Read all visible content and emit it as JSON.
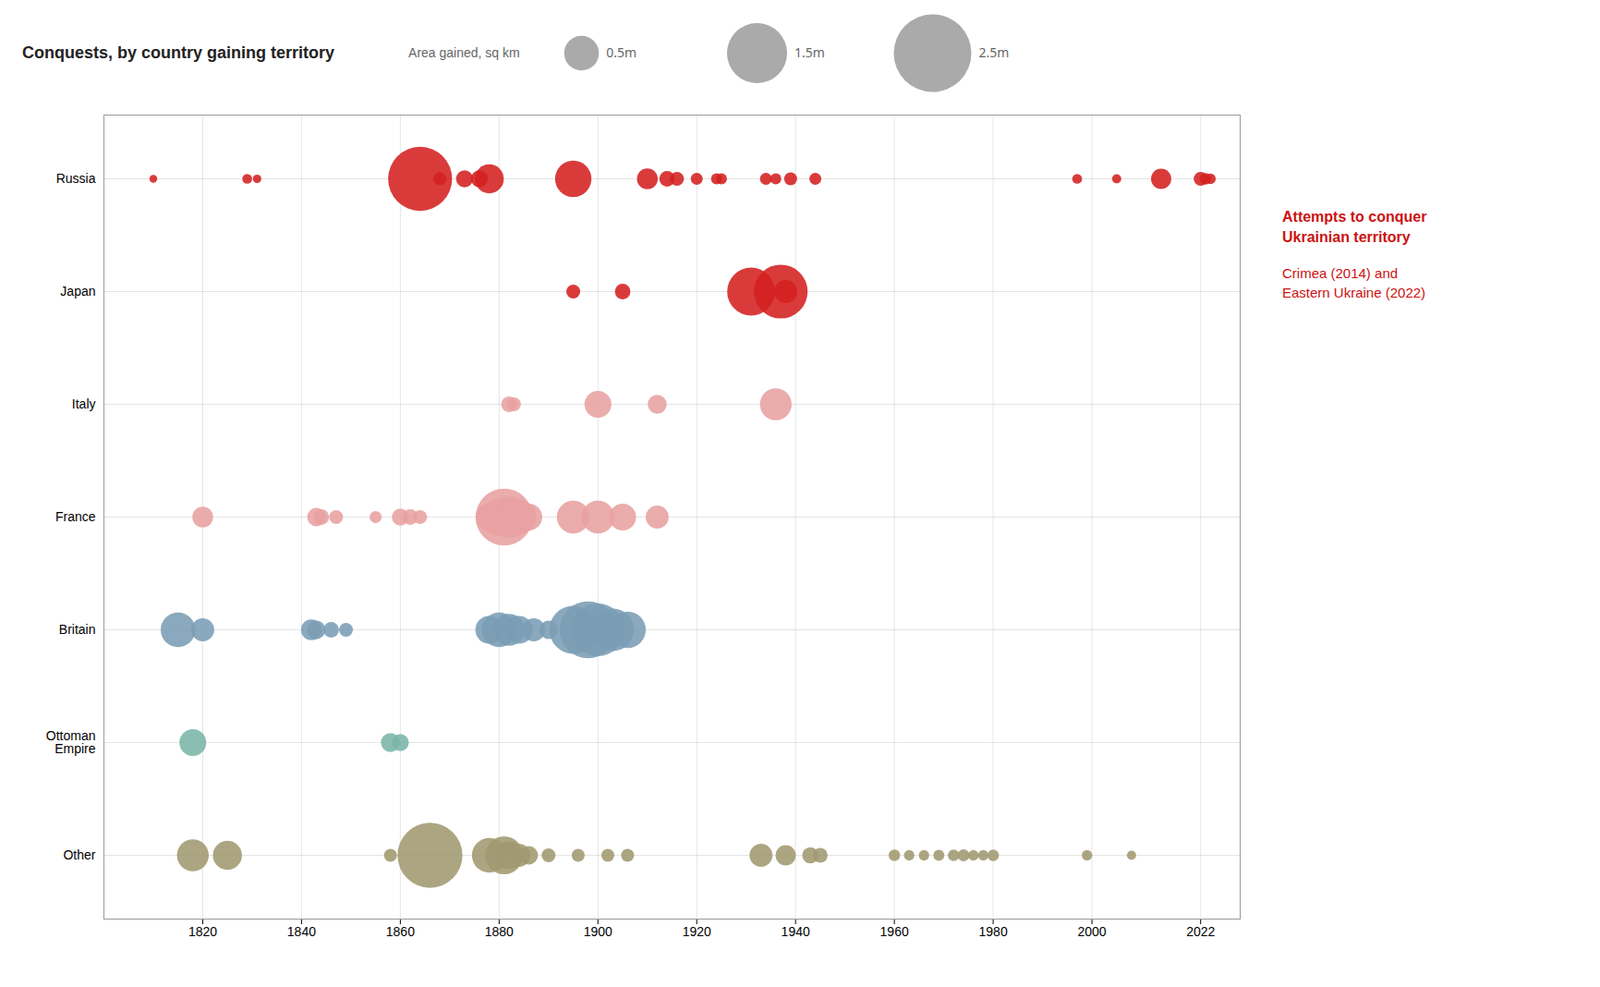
{
  "chart_data": {
    "type": "bubble",
    "title": "Conquests, by country gaining territory",
    "categories": [
      "Russia",
      "Japan",
      "Italy",
      "France",
      "Britain",
      "Ottoman\nEmpire",
      "Other"
    ],
    "xlim": [
      1800,
      2030
    ],
    "xticks": [
      1820,
      1840,
      1860,
      1880,
      1900,
      1920,
      1940,
      1960,
      1980,
      2000,
      2022
    ],
    "grid": true,
    "series": [
      {
        "category": "Russia",
        "color": "#d42020",
        "x": [
          1810,
          1829,
          1831,
          1864,
          1868,
          1873,
          1876,
          1878,
          1895,
          1910,
          1914,
          1916,
          1920,
          1924,
          1925,
          1934,
          1936,
          1939,
          1944,
          1997,
          2005,
          2014,
          2022,
          2023,
          2024
        ],
        "sizes": [
          0.025,
          0.04,
          0.03,
          1.7,
          0.07,
          0.12,
          0.12,
          0.35,
          0.55,
          0.18,
          0.1,
          0.08,
          0.06,
          0.05,
          0.05,
          0.06,
          0.05,
          0.07,
          0.06,
          0.04,
          0.035,
          0.17,
          0.08,
          0.055,
          0.045
        ]
      },
      {
        "category": "Japan",
        "color": "#d42020",
        "x": [
          1895,
          1905,
          1931,
          1937,
          1938
        ],
        "sizes": [
          0.08,
          0.1,
          0.95,
          1.2,
          0.22
        ]
      },
      {
        "category": "Italy",
        "color": "#e8a0a0",
        "x": [
          1882,
          1883,
          1900,
          1912,
          1936
        ],
        "sizes": [
          0.1,
          0.08,
          0.3,
          0.15,
          0.42
        ]
      },
      {
        "category": "France",
        "color": "#e8a0a0",
        "x": [
          1820,
          1843,
          1844,
          1847,
          1855,
          1860,
          1862,
          1864,
          1878,
          1880,
          1881,
          1882,
          1884,
          1886,
          1895,
          1900,
          1905,
          1912
        ],
        "sizes": [
          0.18,
          0.14,
          0.1,
          0.08,
          0.06,
          0.12,
          0.1,
          0.08,
          0.3,
          0.55,
          1.35,
          0.7,
          0.5,
          0.3,
          0.45,
          0.45,
          0.3,
          0.22
        ]
      },
      {
        "category": "Britain",
        "color": "#7a9db5",
        "x": [
          1815,
          1820,
          1842,
          1843,
          1846,
          1849,
          1878,
          1880,
          1882,
          1884,
          1887,
          1890,
          1895,
          1898,
          1900,
          1903,
          1906
        ],
        "sizes": [
          0.5,
          0.22,
          0.18,
          0.14,
          0.1,
          0.08,
          0.32,
          0.5,
          0.42,
          0.32,
          0.22,
          0.14,
          0.95,
          1.35,
          1.15,
          0.75,
          0.55
        ]
      },
      {
        "category": "Ottoman\nEmpire",
        "color": "#7ab5a8",
        "x": [
          1818,
          1858,
          1860
        ],
        "sizes": [
          0.3,
          0.15,
          0.12
        ]
      },
      {
        "category": "Other",
        "color": "#a09870",
        "x": [
          1818,
          1825,
          1858,
          1866,
          1878,
          1881,
          1882,
          1884,
          1886,
          1890,
          1896,
          1902,
          1906,
          1933,
          1938,
          1943,
          1945,
          1960,
          1963,
          1966,
          1969,
          1972,
          1974,
          1976,
          1978,
          1980,
          1999,
          2008
        ],
        "sizes": [
          0.42,
          0.35,
          0.07,
          1.75,
          0.5,
          0.6,
          0.32,
          0.22,
          0.14,
          0.08,
          0.07,
          0.07,
          0.07,
          0.22,
          0.17,
          0.11,
          0.09,
          0.055,
          0.045,
          0.045,
          0.05,
          0.055,
          0.06,
          0.045,
          0.045,
          0.055,
          0.045,
          0.035
        ]
      }
    ],
    "size_legend": {
      "title": "Area gained, sq km",
      "values": [
        0.5,
        1.5,
        2.5
      ],
      "labels": [
        "0.5m",
        "1.5m",
        "2.5m"
      ]
    },
    "annotations": [
      {
        "text": "Attempts to conquer\nUkrainian territory",
        "color": "#cc1111",
        "weight": "bold"
      },
      {
        "text": "Crimea (2014) and\nEastern Ukraine (2022)",
        "color": "#cc1111",
        "weight": "normal"
      }
    ]
  }
}
